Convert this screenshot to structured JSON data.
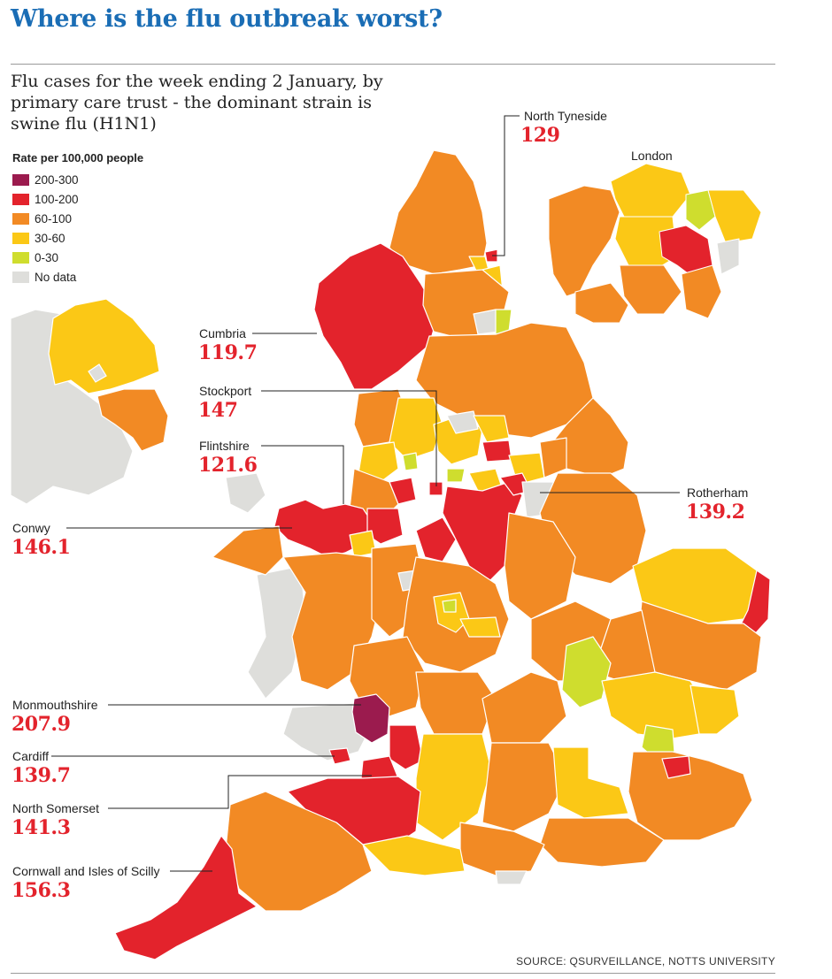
{
  "headline": "Where is the flu outbreak worst?",
  "subtitle": "Flu cases for the week ending 2 January, by primary care trust - the dominant strain is swine flu (H1N1)",
  "legend": {
    "title": "Rate per 100,000 people",
    "items": [
      {
        "label": "200-300",
        "color": "#9b1b4e"
      },
      {
        "label": "100-200",
        "color": "#e3232c"
      },
      {
        "label": "60-100",
        "color": "#f28a24"
      },
      {
        "label": "30-60",
        "color": "#fbc816"
      },
      {
        "label": "0-30",
        "color": "#cfdd2e"
      },
      {
        "label": "No data",
        "color": "#dededb"
      }
    ]
  },
  "inset_london_label": "London",
  "callouts": [
    {
      "name": "North Tyneside",
      "value": "129"
    },
    {
      "name": "Cumbria",
      "value": "119.7"
    },
    {
      "name": "Stockport",
      "value": "147"
    },
    {
      "name": "Flintshire",
      "value": "121.6"
    },
    {
      "name": "Rotherham",
      "value": "139.2"
    },
    {
      "name": "Conwy",
      "value": "146.1"
    },
    {
      "name": "Monmouthshire",
      "value": "207.9"
    },
    {
      "name": "Cardiff",
      "value": "139.7"
    },
    {
      "name": "North Somerset",
      "value": "141.3"
    },
    {
      "name": "Cornwall and Isles of Scilly",
      "value": "156.3"
    }
  ],
  "source": "SOURCE: QSURVEILLANCE, NOTTS UNIVERSITY"
}
